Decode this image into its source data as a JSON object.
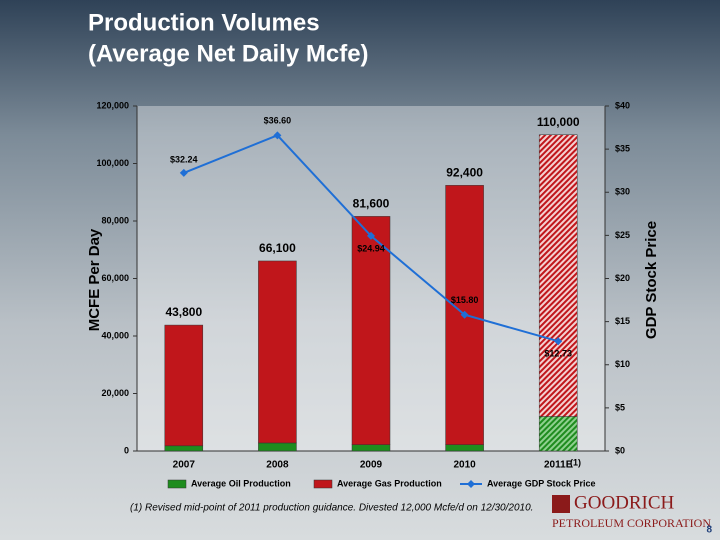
{
  "header": {
    "title": "Production Volumes",
    "subtitle": "(Average Net Daily Mcfe)"
  },
  "chart_data": {
    "type": "bar-line",
    "categories": [
      "2007",
      "2008",
      "2009",
      "2010",
      "2011E"
    ],
    "category_note": "(1)",
    "y_label": "MCFE Per Day",
    "y2_label": "GDP Stock Price",
    "series": [
      {
        "name": "Average Oil Production",
        "color": "#1e8c1e",
        "values": [
          1800,
          2800,
          2200,
          2200,
          12000
        ]
      },
      {
        "name": "Average Gas Production",
        "color": "#c0161b",
        "values": [
          42000,
          63300,
          79400,
          90200,
          98000
        ]
      },
      {
        "name": "Average GDP Stock Price",
        "color": "#1f6fd6",
        "axis": "y2",
        "values": [
          32.24,
          36.6,
          24.94,
          15.8,
          12.73
        ],
        "value_labels": [
          "$32.24",
          "$36.60",
          "$24.94",
          "$15.80",
          "$12.73"
        ]
      }
    ],
    "totals": [
      43800,
      66100,
      81600,
      92400,
      110000
    ],
    "total_labels": [
      "43,800",
      "66,100",
      "81,600",
      "92,400",
      "110,000"
    ],
    "ylim": [
      0,
      120000
    ],
    "yticks": [
      0,
      {
        "value": 20000,
        "label": "20,000"
      },
      {
        "value": 40000,
        "label": "40,000"
      },
      {
        "value": 60000,
        "label": "60,000"
      },
      {
        "value": 80000,
        "label": "80,000"
      },
      {
        "value": 100000,
        "label": "100,000"
      },
      {
        "value": 120000,
        "label": "120,000"
      }
    ],
    "y2lim": [
      0,
      40
    ],
    "y2ticks": [
      {
        "value": 0,
        "label": "$0"
      },
      {
        "value": 5,
        "label": "$5"
      },
      {
        "value": 10,
        "label": "$10"
      },
      {
        "value": 15,
        "label": "$15"
      },
      {
        "value": 20,
        "label": "$20"
      },
      {
        "value": 25,
        "label": "$25"
      },
      {
        "value": 30,
        "label": "$30"
      },
      {
        "value": 35,
        "label": "$35"
      },
      {
        "value": 40,
        "label": "$40"
      }
    ]
  },
  "footnote": "(1)  Revised mid-point of 2011 production guidance.  Divested 12,000 Mcfe/d on 12/30/2010.",
  "logo": {
    "name": "GOODRICH",
    "subname": "PETROLEUM CORPORATION"
  },
  "page_number": "8"
}
